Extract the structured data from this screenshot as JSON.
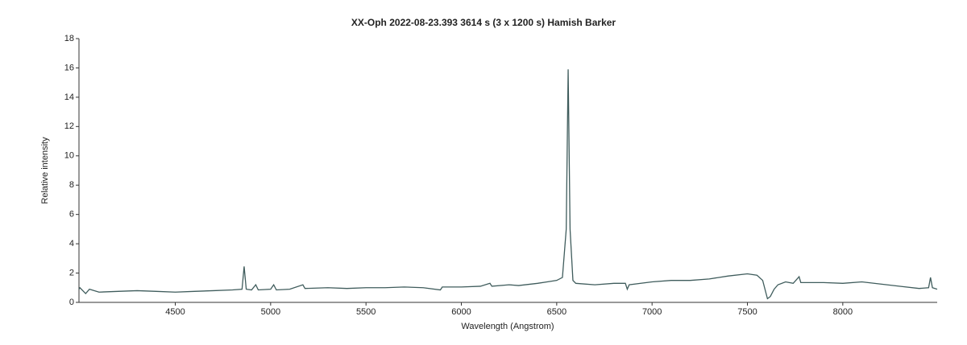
{
  "chart_data": {
    "type": "line",
    "title": "XX-Oph  2022-08-23.393  3614 s (3 x 1200 s)  Hamish Barker",
    "xlabel": "Wavelength (Angstrom)",
    "ylabel": "Relative intensity",
    "color": "#3f5c5c",
    "xlim": [
      3995,
      8495
    ],
    "ylim": [
      0,
      18
    ],
    "xticks": [
      4500,
      5000,
      5500,
      6000,
      6500,
      7000,
      7500,
      8000
    ],
    "yticks": [
      0,
      2,
      4,
      6,
      8,
      10,
      12,
      14,
      16,
      18
    ],
    "x": [
      3995,
      4000,
      4030,
      4050,
      4100,
      4200,
      4300,
      4400,
      4500,
      4600,
      4700,
      4800,
      4850,
      4861,
      4872,
      4900,
      4922,
      4935,
      5000,
      5016,
      5030,
      5100,
      5169,
      5180,
      5300,
      5400,
      5500,
      5600,
      5700,
      5800,
      5890,
      5900,
      6000,
      6100,
      6150,
      6160,
      6250,
      6300,
      6400,
      6450,
      6500,
      6530,
      6550,
      6560,
      6570,
      6585,
      6600,
      6700,
      6800,
      6860,
      6870,
      6880,
      7000,
      7100,
      7200,
      7300,
      7400,
      7500,
      7550,
      7580,
      7600,
      7605,
      7620,
      7640,
      7660,
      7700,
      7740,
      7771,
      7780,
      7900,
      8000,
      8100,
      8200,
      8300,
      8400,
      8450,
      8460,
      8470,
      8495
    ],
    "values": [
      0.9,
      1.0,
      0.6,
      0.9,
      0.7,
      0.75,
      0.8,
      0.75,
      0.7,
      0.75,
      0.8,
      0.85,
      0.9,
      2.45,
      0.9,
      0.85,
      1.2,
      0.85,
      0.9,
      1.2,
      0.85,
      0.9,
      1.2,
      0.95,
      1.0,
      0.95,
      1.0,
      1.0,
      1.05,
      1.0,
      0.85,
      1.05,
      1.05,
      1.1,
      1.3,
      1.1,
      1.2,
      1.15,
      1.3,
      1.4,
      1.5,
      1.7,
      5,
      15.9,
      5,
      1.5,
      1.3,
      1.2,
      1.3,
      1.3,
      0.9,
      1.2,
      1.4,
      1.5,
      1.5,
      1.6,
      1.8,
      1.95,
      1.85,
      1.5,
      0.5,
      0.25,
      0.4,
      0.9,
      1.2,
      1.4,
      1.3,
      1.75,
      1.35,
      1.35,
      1.3,
      1.4,
      1.25,
      1.1,
      0.95,
      1.0,
      1.7,
      1.0,
      0.9
    ]
  }
}
